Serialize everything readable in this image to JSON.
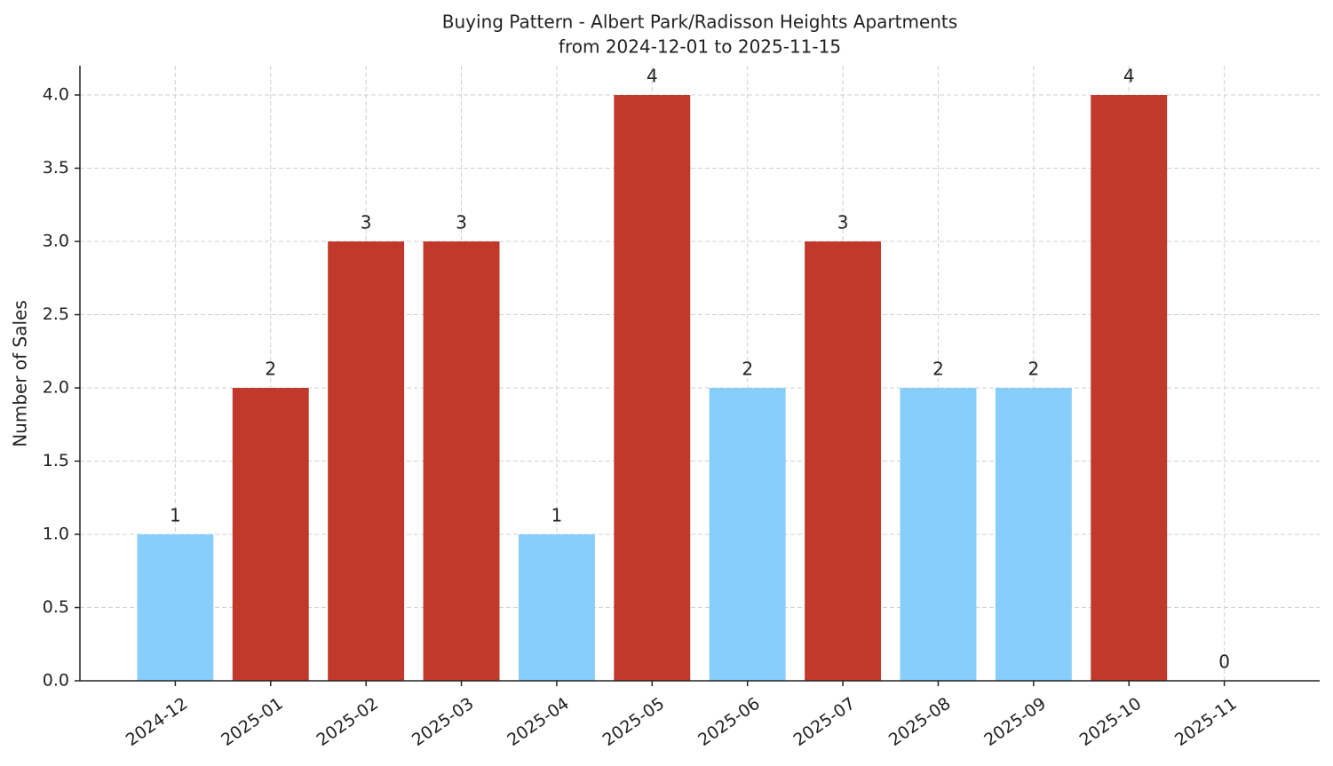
{
  "chart_data": {
    "type": "bar",
    "title": "Buying Pattern - Albert Park/Radisson Heights Apartments",
    "subtitle": "from 2024-12-01 to 2025-11-15",
    "y_label": "Number of Sales",
    "categories": [
      "2024-12",
      "2025-01",
      "2025-02",
      "2025-03",
      "2025-04",
      "2025-05",
      "2025-06",
      "2025-07",
      "2025-08",
      "2025-09",
      "2025-10",
      "2025-11"
    ],
    "values": [
      1,
      2,
      3,
      3,
      1,
      4,
      2,
      3,
      2,
      2,
      4,
      0
    ],
    "colors": [
      "#87cefa",
      "#c0392b",
      "#c0392b",
      "#c0392b",
      "#87cefa",
      "#c0392b",
      "#87cefa",
      "#c0392b",
      "#87cefa",
      "#87cefa",
      "#c0392b",
      "#87cefa"
    ],
    "ylim": [
      0,
      4.2
    ],
    "yticks": [
      {
        "value": 0,
        "label": "0.0"
      },
      0.5,
      {
        "value": 1,
        "label": "1.0"
      },
      1.5,
      {
        "value": 2,
        "label": "2.0"
      },
      2.5,
      {
        "value": 3,
        "label": "3.0"
      },
      3.5,
      {
        "value": 4,
        "label": "4.0"
      }
    ],
    "grid": true
  }
}
